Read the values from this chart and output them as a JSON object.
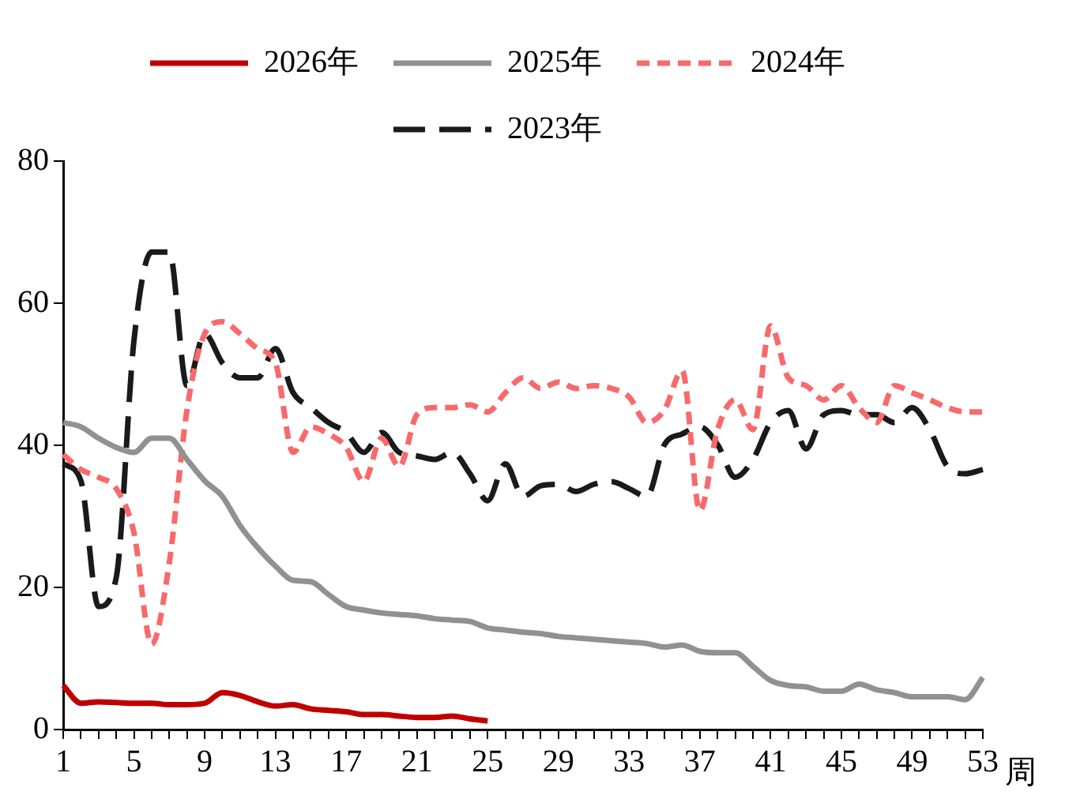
{
  "chart_data": {
    "type": "line",
    "categories": [
      "1",
      null,
      null,
      null,
      "5",
      null,
      null,
      null,
      "9",
      null,
      null,
      null,
      "13",
      null,
      null,
      null,
      "17",
      null,
      null,
      null,
      "21",
      null,
      null,
      null,
      "25",
      null,
      null,
      null,
      "29",
      null,
      null,
      null,
      "33",
      null,
      null,
      null,
      "37",
      null,
      null,
      null,
      "41",
      null,
      null,
      null,
      "45",
      null,
      null,
      null,
      "49",
      null,
      null,
      null,
      "53"
    ],
    "xlabel": "周",
    "ylim": [
      0,
      80
    ],
    "yticks": [
      0,
      20,
      40,
      60,
      80
    ],
    "grid": false,
    "legend": "top",
    "marker": "none",
    "series": [
      {
        "name": "2026年",
        "color": "#c00000",
        "line_style": "solid",
        "values": [
          6.2,
          3.7,
          3.9,
          3.8,
          3.7,
          3.7,
          3.5,
          3.5,
          3.7,
          5.2,
          4.8,
          3.9,
          3.3,
          3.5,
          2.9,
          2.7,
          2.5,
          2.1,
          2.1,
          1.9,
          1.7,
          1.7,
          1.9,
          1.5,
          1.2,
          null,
          null,
          null,
          null,
          null,
          null,
          null,
          null,
          null,
          null,
          null,
          null,
          null,
          null,
          null,
          null,
          null,
          null,
          null,
          null,
          null,
          null,
          null,
          null,
          null,
          null,
          null,
          null
        ]
      },
      {
        "name": "2025年",
        "color": "#919191",
        "line_style": "solid",
        "values": [
          43.2,
          42.6,
          41,
          39.7,
          39,
          41,
          41,
          38,
          35,
          32.8,
          28.7,
          25.6,
          23,
          21,
          20.8,
          19,
          17.3,
          16.8,
          16.4,
          16.2,
          16,
          15.6,
          15.4,
          15.2,
          14.3,
          14,
          13.7,
          13.5,
          13.1,
          12.9,
          12.7,
          12.5,
          12.3,
          12.1,
          11.6,
          11.9,
          11,
          10.8,
          10.8,
          8.9,
          6.9,
          6.2,
          6,
          5.4,
          5.4,
          6.4,
          5.6,
          5.2,
          4.6,
          4.6,
          4.6,
          4.2,
          7.3
        ]
      },
      {
        "name": "2024年",
        "color": "#f8696b",
        "line_style": "dashed",
        "values": [
          38.7,
          36.6,
          35.5,
          33.9,
          27.7,
          12,
          23.5,
          45,
          55.7,
          57.4,
          55.7,
          53.6,
          51.6,
          39,
          42.6,
          41.6,
          39.7,
          34.9,
          41,
          37,
          44.3,
          45.3,
          45.3,
          45.7,
          44.7,
          47.4,
          49.5,
          48,
          48.9,
          48,
          48.4,
          48,
          46.8,
          43.2,
          45,
          50.5,
          30.8,
          42.2,
          46.4,
          42.2,
          56.8,
          49.5,
          48.4,
          46.4,
          48.4,
          45.3,
          43.2,
          48.4,
          47.4,
          46.4,
          45.3,
          44.7,
          44.7
        ]
      },
      {
        "name": "2023年",
        "color": "#1a1a1a",
        "line_style": "longdash",
        "values": [
          37.4,
          35,
          17.3,
          21.4,
          54.7,
          67.2,
          67.2,
          48.4,
          55.7,
          51.6,
          49.5,
          49.5,
          53.6,
          47.4,
          45.3,
          43.2,
          41.8,
          39,
          41.8,
          39,
          38.5,
          38,
          39,
          36,
          32.2,
          37.4,
          32.8,
          34.3,
          34.5,
          33.5,
          34.5,
          34.9,
          33.9,
          32.8,
          40.1,
          41.6,
          42.6,
          40.1,
          35.5,
          38,
          43.2,
          44.9,
          39.5,
          44.3,
          44.9,
          44.3,
          44.3,
          43.2,
          45.3,
          42.2,
          37,
          36,
          36.6
        ]
      }
    ]
  }
}
